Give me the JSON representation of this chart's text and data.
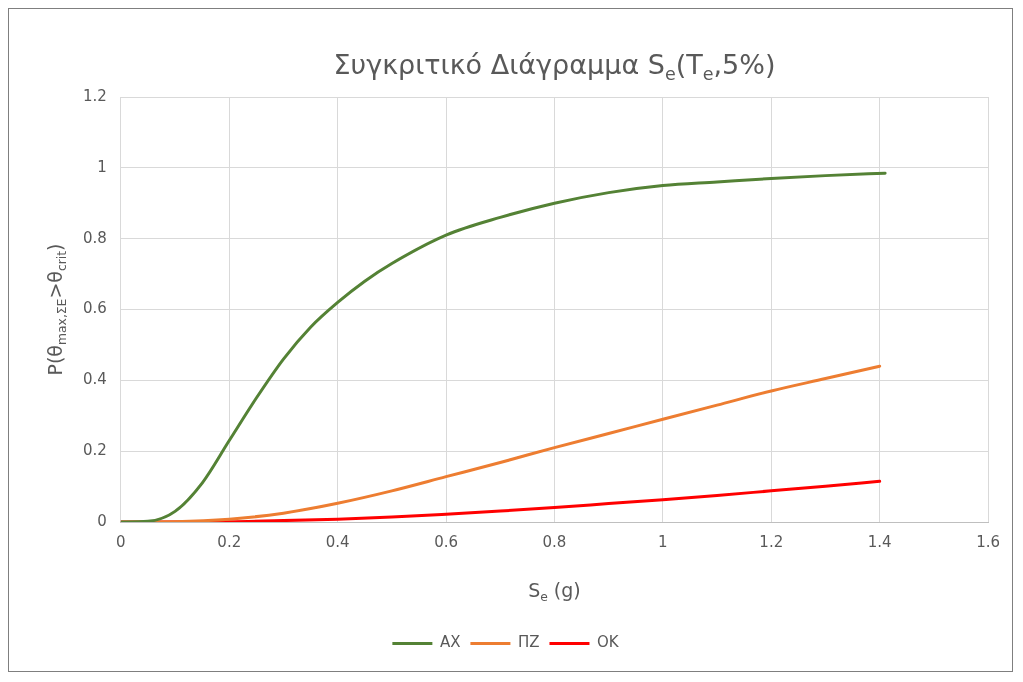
{
  "chart_data": {
    "type": "line",
    "title": "Συγκριτικό Διάγραμμα S$_{e}$(T$_{e}$,5%)",
    "xlabel": "S$_{e}$ (g)",
    "ylabel": "P(θ$_{max,ΣΕ}$>θ$_{crit}$)",
    "xlim": [
      0,
      1.6
    ],
    "xticks": [
      0,
      0.2,
      0.4,
      0.6,
      0.8,
      1,
      1.2,
      1.4,
      1.6
    ],
    "ylim": [
      0,
      1.2
    ],
    "yticks": [
      0,
      0.2,
      0.4,
      0.6,
      0.8,
      1,
      1.2
    ],
    "grid": true,
    "legend": "bottom",
    "marker": "none",
    "line_style": "solid",
    "series": [
      {
        "name": "AX",
        "color": "#548235",
        "x": [
          0,
          0.05,
          0.1,
          0.15,
          0.2,
          0.25,
          0.3,
          0.35,
          0.4,
          0.45,
          0.5,
          0.6,
          0.7,
          0.8,
          0.9,
          1.0,
          1.1,
          1.2,
          1.3,
          1.41
        ],
        "values": [
          0,
          0.002,
          0.03,
          0.11,
          0.23,
          0.35,
          0.46,
          0.55,
          0.62,
          0.68,
          0.73,
          0.81,
          0.86,
          0.9,
          0.93,
          0.95,
          0.96,
          0.97,
          0.978,
          0.985
        ]
      },
      {
        "name": "ΠΖ",
        "color": "#ed7d31",
        "x": [
          0,
          0.1,
          0.2,
          0.3,
          0.4,
          0.5,
          0.6,
          0.7,
          0.8,
          0.9,
          1.0,
          1.1,
          1.2,
          1.3,
          1.4
        ],
        "values": [
          0,
          0.001,
          0.008,
          0.025,
          0.053,
          0.088,
          0.128,
          0.168,
          0.21,
          0.25,
          0.29,
          0.33,
          0.37,
          0.405,
          0.44
        ]
      },
      {
        "name": "OK",
        "color": "#ff0000",
        "x": [
          0,
          0.2,
          0.3,
          0.4,
          0.5,
          0.6,
          0.7,
          0.8,
          0.9,
          1.0,
          1.1,
          1.2,
          1.3,
          1.4
        ],
        "values": [
          0,
          0.001,
          0.004,
          0.008,
          0.014,
          0.022,
          0.031,
          0.041,
          0.052,
          0.063,
          0.075,
          0.088,
          0.101,
          0.115
        ]
      }
    ]
  }
}
